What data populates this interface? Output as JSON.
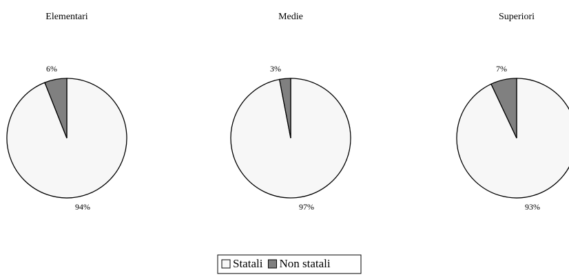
{
  "chart_data": [
    {
      "type": "pie",
      "title": "Elementari",
      "values": [
        94,
        6
      ],
      "value_labels": [
        "94%",
        "6%"
      ]
    },
    {
      "type": "pie",
      "title": "Medie",
      "values": [
        97,
        3
      ],
      "value_labels": [
        "97%",
        "3%"
      ]
    },
    {
      "type": "pie",
      "title": "Superiori",
      "values": [
        93,
        7
      ],
      "value_labels": [
        "93%",
        "7%"
      ]
    }
  ],
  "legend": [
    {
      "name": "Statali",
      "color": "#f7f7f7"
    },
    {
      "name": "Non statali",
      "color": "#808080"
    }
  ]
}
